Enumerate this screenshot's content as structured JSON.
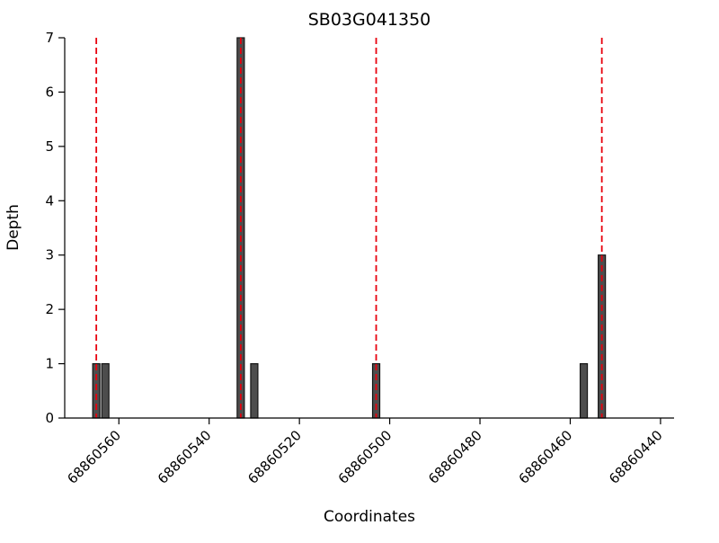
{
  "chart_data": {
    "type": "bar",
    "title": "SB03G041350",
    "xlabel": "Coordinates",
    "ylabel": "Depth",
    "x_axis": {
      "reversed": true,
      "left_value": 68860572,
      "right_value": 68860437,
      "ticks": [
        68860560,
        68860540,
        68860520,
        68860500,
        68860480,
        68860460,
        68860440
      ],
      "tick_rotation_deg": 45
    },
    "y_axis": {
      "min": 0,
      "max": 7,
      "ticks": [
        0,
        1,
        2,
        3,
        4,
        5,
        6,
        7
      ]
    },
    "bars": [
      {
        "coordinate": 68860565,
        "depth": 1
      },
      {
        "coordinate": 68860563,
        "depth": 1
      },
      {
        "coordinate": 68860533,
        "depth": 7
      },
      {
        "coordinate": 68860530,
        "depth": 1
      },
      {
        "coordinate": 68860503,
        "depth": 1
      },
      {
        "coordinate": 68860457,
        "depth": 1
      },
      {
        "coordinate": 68860453,
        "depth": 3
      }
    ],
    "marker_lines_x": [
      68860565,
      68860533,
      68860503,
      68860453
    ],
    "grid": false,
    "styles": {
      "bar_fill": "#4d4d4d",
      "bar_edge": "#141414",
      "marker_line_color": "#e8000d",
      "marker_line_dash": "7 4",
      "axis_color": "#000000",
      "background": "#ffffff"
    }
  }
}
